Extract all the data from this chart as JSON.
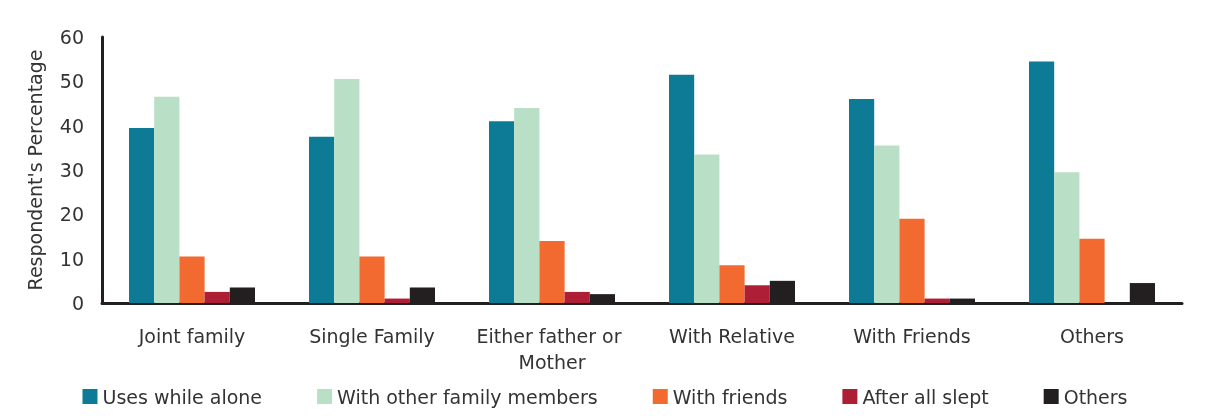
{
  "chart_data": {
    "type": "bar",
    "ylabel": "Respondent's Percentage",
    "categories": [
      "Joint family",
      "Single Family",
      "Either father or Mother",
      "With Relative",
      "With Friends",
      "Others"
    ],
    "series": [
      {
        "name": "Uses while alone",
        "color": "#0e7b96",
        "values": [
          39.5,
          37.5,
          41,
          51.5,
          46,
          54.5
        ]
      },
      {
        "name": "With other family members",
        "color": "#b9dfc6",
        "values": [
          46.5,
          50.5,
          44,
          33.5,
          35.5,
          29.5
        ]
      },
      {
        "name": "With friends",
        "color": "#f26a30",
        "values": [
          10.5,
          10.5,
          14,
          8.5,
          19,
          14.5
        ]
      },
      {
        "name": "After all slept",
        "color": "#ae1e35",
        "values": [
          2.5,
          1,
          2.5,
          4,
          1,
          null
        ]
      },
      {
        "name": "Others",
        "color": "#231f20",
        "values": [
          3.5,
          3.5,
          2,
          5,
          1,
          4.5
        ]
      }
    ],
    "ylim": [
      0,
      60
    ],
    "yticks": [
      0,
      10,
      20,
      30,
      40,
      50,
      60
    ],
    "grid": false,
    "legend": "bottom"
  }
}
